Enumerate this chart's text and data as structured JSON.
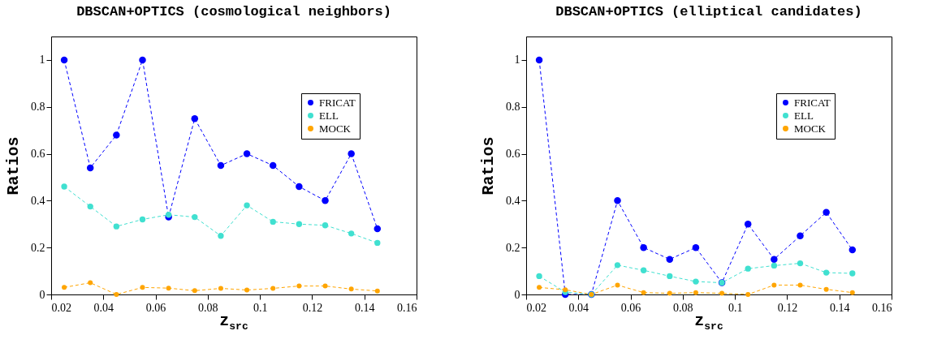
{
  "chart_data": [
    {
      "type": "line",
      "title": "DBSCAN+OPTICS (cosmological neighbors)",
      "xlabel": "z$_{src}$",
      "ylabel": "Ratios",
      "x": [
        0.025,
        0.035,
        0.045,
        0.055,
        0.065,
        0.075,
        0.085,
        0.095,
        0.105,
        0.115,
        0.125,
        0.135,
        0.145
      ],
      "xlim": [
        0.02,
        0.16
      ],
      "xticks": [
        0.02,
        0.04,
        0.06,
        0.08,
        0.1,
        0.12,
        0.14,
        0.16
      ],
      "ylim": [
        0,
        1.1
      ],
      "yticks": [
        0,
        0.2,
        0.4,
        0.6,
        0.8,
        1
      ],
      "legend": "top right",
      "marker": "circle",
      "line_style": "dashed",
      "grid": false,
      "series": [
        {
          "name": "FRICAT",
          "color": "#0000ff",
          "values": [
            1,
            0.54,
            0.68,
            1,
            0.33,
            0.75,
            0.55,
            0.6,
            0.55,
            0.46,
            0.4,
            0.6,
            0.28
          ]
        },
        {
          "name": "ELL",
          "color": "#40e0d0",
          "values": [
            0.46,
            0.375,
            0.29,
            0.32,
            0.34,
            0.33,
            0.25,
            0.38,
            0.31,
            0.3,
            0.295,
            0.26,
            0.22
          ]
        },
        {
          "name": "MOCK",
          "color": "#ffa500",
          "values": [
            0.03,
            0.05,
            0,
            0.03,
            0.027,
            0.016,
            0.026,
            0.019,
            0.026,
            0.036,
            0.036,
            0.023,
            0.015
          ]
        }
      ]
    },
    {
      "type": "line",
      "title": "DBSCAN+OPTICS (elliptical candidates)",
      "xlabel": "z$_{src}$",
      "ylabel": "Ratios",
      "x": [
        0.025,
        0.035,
        0.045,
        0.055,
        0.065,
        0.075,
        0.085,
        0.095,
        0.105,
        0.115,
        0.125,
        0.135,
        0.145
      ],
      "xlim": [
        0.02,
        0.16
      ],
      "xticks": [
        0.02,
        0.04,
        0.06,
        0.08,
        0.1,
        0.12,
        0.14,
        0.16
      ],
      "ylim": [
        0,
        1.1
      ],
      "yticks": [
        0,
        0.2,
        0.4,
        0.6,
        0.8,
        1
      ],
      "legend": "top right",
      "marker": "circle",
      "line_style": "dashed",
      "grid": false,
      "series": [
        {
          "name": "FRICAT",
          "color": "#0000ff",
          "values": [
            1,
            0,
            0,
            0.4,
            0.2,
            0.15,
            0.2,
            0.05,
            0.3,
            0.15,
            0.25,
            0.35,
            0.19
          ]
        },
        {
          "name": "ELL",
          "color": "#40e0d0",
          "values": [
            0.078,
            0.01,
            0,
            0.125,
            0.103,
            0.078,
            0.055,
            0.05,
            0.11,
            0.123,
            0.133,
            0.093,
            0.09
          ]
        },
        {
          "name": "MOCK",
          "color": "#ffa500",
          "values": [
            0.03,
            0.02,
            0,
            0.04,
            0.008,
            0.005,
            0.008,
            0.005,
            0,
            0.04,
            0.04,
            0.022,
            0.008
          ]
        }
      ]
    }
  ]
}
